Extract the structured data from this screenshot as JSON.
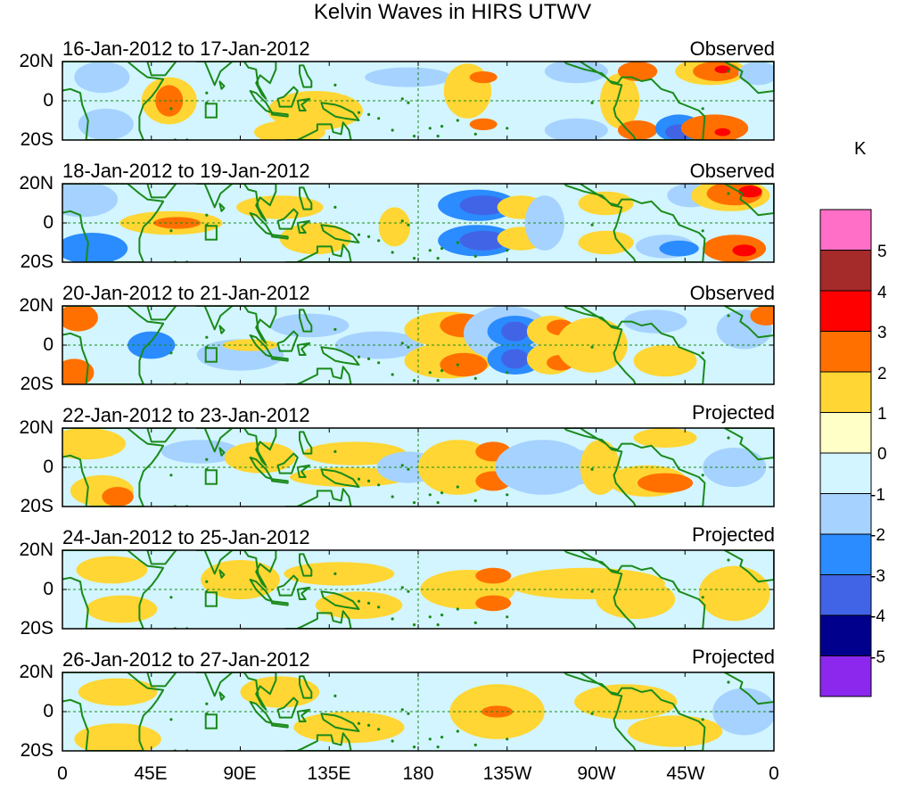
{
  "title": "Kelvin Waves in HIRS UTWV",
  "panels": [
    {
      "date_range": "16-Jan-2012 to 17-Jan-2012",
      "kind": "Observed"
    },
    {
      "date_range": "18-Jan-2012 to 19-Jan-2012",
      "kind": "Observed"
    },
    {
      "date_range": "20-Jan-2012 to 21-Jan-2012",
      "kind": "Observed"
    },
    {
      "date_range": "22-Jan-2012 to 23-Jan-2012",
      "kind": "Projected"
    },
    {
      "date_range": "24-Jan-2012 to 25-Jan-2012",
      "kind": "Projected"
    },
    {
      "date_range": "26-Jan-2012 to 27-Jan-2012",
      "kind": "Projected"
    }
  ],
  "lat_labels": [
    "20N",
    "0",
    "20S"
  ],
  "lon_labels": [
    "0",
    "45E",
    "90E",
    "135E",
    "180",
    "135W",
    "90W",
    "45W",
    "0"
  ],
  "colorbar": {
    "unit": "K",
    "labels": [
      "5",
      "4",
      "3",
      "2",
      "1",
      "0",
      "-1",
      "-2",
      "-3",
      "-4",
      "-5"
    ],
    "colors": [
      "#ff6ec7",
      "#a52a2a",
      "#ff0000",
      "#ff7000",
      "#ffd633",
      "#ffffc8",
      "#d2f5ff",
      "#a6d2ff",
      "#2a8cff",
      "#4164e6",
      "#00008c",
      "#8c28ee"
    ]
  },
  "colors": {
    "coast": "#1a8a1a",
    "grid": "#1a8a1a",
    "border": "#000000"
  }
}
